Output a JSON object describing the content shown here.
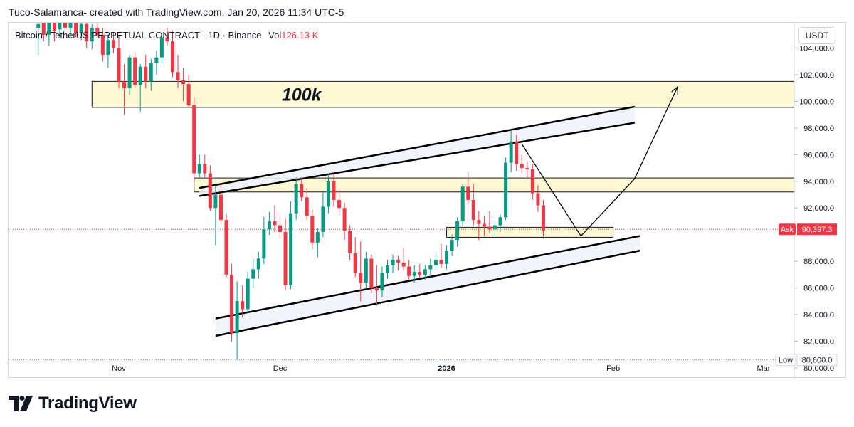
{
  "header": {
    "caption": "Tuco-Salamanca- created with TradingView.com, Jan 20, 2026 11:34 UTC-5",
    "symbol": "Bitcoin / TetherUS PERPETUAL CONTRACT · 1D · Binance",
    "vol_label": "Vol",
    "vol_value": "126.13 K",
    "currency": "USDT"
  },
  "brand": {
    "name": "TradingView"
  },
  "chart_data": {
    "type": "candlestick",
    "title": "Bitcoin / TetherUS PERPETUAL CONTRACT · 1D · Binance",
    "xlabel": "",
    "ylabel": "",
    "ylim": [
      79300,
      105900
    ],
    "y_ticks": [
      "104,000.0",
      "102,000.0",
      "100,000.0",
      "98,000.0",
      "96,000.0",
      "94,000.0",
      "92,000.0",
      "88,000.0",
      "86,000.0",
      "84,000.0",
      "82,000.0",
      "80,000.0"
    ],
    "x_ticks": [
      {
        "label": "Nov",
        "day": 0
      },
      {
        "label": "Dec",
        "day": 30
      },
      {
        "label": "2026",
        "day": 61
      },
      {
        "label": "Feb",
        "day": 92
      },
      {
        "label": "Mar",
        "day": 120
      }
    ],
    "ask": {
      "label": "Ask",
      "value": "90,397.3",
      "price": 90397
    },
    "low": {
      "label": "Low",
      "value": "80,600.0",
      "price": 80600
    },
    "annotations": [
      {
        "type": "zone",
        "label": "100k",
        "d1": -5,
        "d2": 126,
        "p_low": 99550,
        "p_high": 101500
      },
      {
        "type": "zone",
        "label": "",
        "d1": 14,
        "d2": 126,
        "p_low": 93200,
        "p_high": 94250
      },
      {
        "type": "zone",
        "label": "",
        "d1": 61,
        "d2": 92,
        "p_low": 89800,
        "p_high": 90550
      }
    ],
    "channel": {
      "upper": [
        {
          "day": 15,
          "price": 93500,
          "day2": 96,
          "price2": 99600
        },
        {
          "day": 15,
          "price": 92900,
          "day2": 96,
          "price2": 98400
        }
      ],
      "lower": [
        {
          "day": 18,
          "price": 83700,
          "day2": 97,
          "price2": 89900
        },
        {
          "day": 18,
          "price": 82400,
          "day2": 97,
          "price2": 88800
        }
      ]
    },
    "path": [
      {
        "day": 75,
        "price": 96800
      },
      {
        "day": 86,
        "price": 89900
      },
      {
        "day": 96,
        "price": 94200
      },
      {
        "day": 104,
        "price": 101100
      }
    ],
    "candles": [
      {
        "day": -15,
        "o": 105500,
        "h": 106200,
        "l": 103500,
        "c": 105800
      },
      {
        "day": -14,
        "o": 105900,
        "h": 106300,
        "l": 104500,
        "c": 105000
      },
      {
        "day": -13,
        "o": 105000,
        "h": 106500,
        "l": 104200,
        "c": 106000
      },
      {
        "day": -12,
        "o": 106000,
        "h": 106400,
        "l": 104500,
        "c": 105300
      },
      {
        "day": -11,
        "o": 105400,
        "h": 106200,
        "l": 104800,
        "c": 106100
      },
      {
        "day": -10,
        "o": 106000,
        "h": 106400,
        "l": 105000,
        "c": 105500
      },
      {
        "day": -9,
        "o": 105500,
        "h": 106200,
        "l": 104800,
        "c": 105900
      },
      {
        "day": -8,
        "o": 105900,
        "h": 106300,
        "l": 104800,
        "c": 105100
      },
      {
        "day": -7,
        "o": 105100,
        "h": 106000,
        "l": 104600,
        "c": 105800
      },
      {
        "day": -6,
        "o": 105800,
        "h": 106100,
        "l": 104000,
        "c": 104500
      },
      {
        "day": -5,
        "o": 104500,
        "h": 105800,
        "l": 103900,
        "c": 105500
      },
      {
        "day": -4,
        "o": 105500,
        "h": 106000,
        "l": 104800,
        "c": 105000
      },
      {
        "day": -3,
        "o": 105000,
        "h": 105500,
        "l": 103000,
        "c": 103500
      },
      {
        "day": -2,
        "o": 103500,
        "h": 105000,
        "l": 102500,
        "c": 104600
      },
      {
        "day": -1,
        "o": 104600,
        "h": 105200,
        "l": 103600,
        "c": 104000
      },
      {
        "day": 0,
        "o": 104000,
        "h": 105000,
        "l": 101000,
        "c": 101500
      },
      {
        "day": 1,
        "o": 101500,
        "h": 102800,
        "l": 99000,
        "c": 101000
      },
      {
        "day": 2,
        "o": 101000,
        "h": 103500,
        "l": 100500,
        "c": 103300
      },
      {
        "day": 3,
        "o": 103300,
        "h": 103700,
        "l": 101000,
        "c": 101200
      },
      {
        "day": 4,
        "o": 101200,
        "h": 102800,
        "l": 99200,
        "c": 102600
      },
      {
        "day": 5,
        "o": 102600,
        "h": 103500,
        "l": 101000,
        "c": 101500
      },
      {
        "day": 6,
        "o": 101500,
        "h": 103200,
        "l": 100800,
        "c": 102900
      },
      {
        "day": 7,
        "o": 102900,
        "h": 103800,
        "l": 102000,
        "c": 103300
      },
      {
        "day": 8,
        "o": 103300,
        "h": 105200,
        "l": 102800,
        "c": 104800
      },
      {
        "day": 9,
        "o": 104800,
        "h": 105500,
        "l": 104200,
        "c": 104500
      },
      {
        "day": 10,
        "o": 104500,
        "h": 105300,
        "l": 101800,
        "c": 102200
      },
      {
        "day": 11,
        "o": 102200,
        "h": 103500,
        "l": 101000,
        "c": 101600
      },
      {
        "day": 12,
        "o": 101600,
        "h": 102500,
        "l": 100000,
        "c": 101300
      },
      {
        "day": 13,
        "o": 101300,
        "h": 102000,
        "l": 99600,
        "c": 99700
      },
      {
        "day": 14,
        "o": 99700,
        "h": 100300,
        "l": 94000,
        "c": 94600
      },
      {
        "day": 15,
        "o": 94600,
        "h": 96000,
        "l": 94300,
        "c": 95300
      },
      {
        "day": 16,
        "o": 95300,
        "h": 96000,
        "l": 94300,
        "c": 94600
      },
      {
        "day": 17,
        "o": 94600,
        "h": 95200,
        "l": 91800,
        "c": 92000
      },
      {
        "day": 18,
        "o": 92000,
        "h": 93700,
        "l": 89200,
        "c": 93000
      },
      {
        "day": 19,
        "o": 93000,
        "h": 93800,
        "l": 90800,
        "c": 91100
      },
      {
        "day": 20,
        "o": 91100,
        "h": 91600,
        "l": 86800,
        "c": 87000
      },
      {
        "day": 21,
        "o": 87000,
        "h": 87800,
        "l": 82000,
        "c": 82600
      },
      {
        "day": 22,
        "o": 82600,
        "h": 86500,
        "l": 80600,
        "c": 85000
      },
      {
        "day": 23,
        "o": 85000,
        "h": 86200,
        "l": 83800,
        "c": 84400
      },
      {
        "day": 24,
        "o": 84400,
        "h": 87200,
        "l": 84100,
        "c": 86700
      },
      {
        "day": 25,
        "o": 86700,
        "h": 88200,
        "l": 86000,
        "c": 87400
      },
      {
        "day": 26,
        "o": 87400,
        "h": 88700,
        "l": 86700,
        "c": 88200
      },
      {
        "day": 27,
        "o": 88200,
        "h": 91300,
        "l": 87800,
        "c": 90400
      },
      {
        "day": 28,
        "o": 90400,
        "h": 91700,
        "l": 90000,
        "c": 91000
      },
      {
        "day": 29,
        "o": 91000,
        "h": 92200,
        "l": 90200,
        "c": 90700
      },
      {
        "day": 30,
        "o": 90700,
        "h": 91500,
        "l": 89700,
        "c": 90200
      },
      {
        "day": 31,
        "o": 90200,
        "h": 91200,
        "l": 85800,
        "c": 86200
      },
      {
        "day": 32,
        "o": 86200,
        "h": 92500,
        "l": 85900,
        "c": 91600
      },
      {
        "day": 33,
        "o": 91600,
        "h": 94300,
        "l": 91100,
        "c": 93800
      },
      {
        "day": 34,
        "o": 93800,
        "h": 94300,
        "l": 92500,
        "c": 92800
      },
      {
        "day": 35,
        "o": 92800,
        "h": 93500,
        "l": 91100,
        "c": 91400
      },
      {
        "day": 36,
        "o": 91400,
        "h": 91900,
        "l": 88900,
        "c": 89400
      },
      {
        "day": 37,
        "o": 89400,
        "h": 90500,
        "l": 88300,
        "c": 90200
      },
      {
        "day": 38,
        "o": 90200,
        "h": 93200,
        "l": 89800,
        "c": 92100
      },
      {
        "day": 39,
        "o": 92100,
        "h": 94600,
        "l": 91600,
        "c": 94000
      },
      {
        "day": 40,
        "o": 94000,
        "h": 94600,
        "l": 92100,
        "c": 92600
      },
      {
        "day": 41,
        "o": 92600,
        "h": 93400,
        "l": 91400,
        "c": 92000
      },
      {
        "day": 42,
        "o": 92000,
        "h": 92400,
        "l": 89600,
        "c": 90300
      },
      {
        "day": 43,
        "o": 90300,
        "h": 90700,
        "l": 88100,
        "c": 88600
      },
      {
        "day": 44,
        "o": 88600,
        "h": 89800,
        "l": 86800,
        "c": 87100
      },
      {
        "day": 45,
        "o": 87100,
        "h": 89500,
        "l": 85000,
        "c": 86400
      },
      {
        "day": 46,
        "o": 86400,
        "h": 88700,
        "l": 85900,
        "c": 88200
      },
      {
        "day": 47,
        "o": 88200,
        "h": 88500,
        "l": 85600,
        "c": 86000
      },
      {
        "day": 48,
        "o": 86000,
        "h": 87700,
        "l": 84700,
        "c": 85800
      },
      {
        "day": 49,
        "o": 85800,
        "h": 87600,
        "l": 85300,
        "c": 87100
      },
      {
        "day": 50,
        "o": 87100,
        "h": 88100,
        "l": 86700,
        "c": 87700
      },
      {
        "day": 51,
        "o": 87700,
        "h": 88500,
        "l": 87100,
        "c": 88100
      },
      {
        "day": 52,
        "o": 88100,
        "h": 88400,
        "l": 87300,
        "c": 87900
      },
      {
        "day": 53,
        "o": 87900,
        "h": 89000,
        "l": 87300,
        "c": 87600
      },
      {
        "day": 54,
        "o": 87600,
        "h": 88100,
        "l": 86600,
        "c": 86900
      },
      {
        "day": 55,
        "o": 86900,
        "h": 87700,
        "l": 86400,
        "c": 87200
      },
      {
        "day": 56,
        "o": 87200,
        "h": 87800,
        "l": 86700,
        "c": 87000
      },
      {
        "day": 57,
        "o": 87000,
        "h": 87700,
        "l": 86600,
        "c": 87400
      },
      {
        "day": 58,
        "o": 87400,
        "h": 88200,
        "l": 86800,
        "c": 87700
      },
      {
        "day": 59,
        "o": 87700,
        "h": 88700,
        "l": 87300,
        "c": 88100
      },
      {
        "day": 60,
        "o": 88100,
        "h": 89300,
        "l": 87500,
        "c": 87800
      },
      {
        "day": 61,
        "o": 87800,
        "h": 89200,
        "l": 87400,
        "c": 88800
      },
      {
        "day": 62,
        "o": 88800,
        "h": 90000,
        "l": 88400,
        "c": 89600
      },
      {
        "day": 63,
        "o": 89600,
        "h": 91300,
        "l": 89100,
        "c": 91000
      },
      {
        "day": 64,
        "o": 91000,
        "h": 93800,
        "l": 90600,
        "c": 93600
      },
      {
        "day": 65,
        "o": 93600,
        "h": 94700,
        "l": 92300,
        "c": 92600
      },
      {
        "day": 66,
        "o": 92600,
        "h": 93800,
        "l": 90700,
        "c": 91100
      },
      {
        "day": 67,
        "o": 91100,
        "h": 91800,
        "l": 89600,
        "c": 90800
      },
      {
        "day": 68,
        "o": 90800,
        "h": 91400,
        "l": 89900,
        "c": 90600
      },
      {
        "day": 69,
        "o": 90600,
        "h": 91800,
        "l": 90100,
        "c": 90400
      },
      {
        "day": 70,
        "o": 90400,
        "h": 91100,
        "l": 89900,
        "c": 90700
      },
      {
        "day": 71,
        "o": 90700,
        "h": 91500,
        "l": 90200,
        "c": 91300
      },
      {
        "day": 72,
        "o": 91300,
        "h": 95800,
        "l": 91100,
        "c": 95400
      },
      {
        "day": 73,
        "o": 95400,
        "h": 97800,
        "l": 94700,
        "c": 97000
      },
      {
        "day": 74,
        "o": 97000,
        "h": 97500,
        "l": 94800,
        "c": 95300
      },
      {
        "day": 75,
        "o": 95300,
        "h": 96000,
        "l": 94600,
        "c": 95000
      },
      {
        "day": 76,
        "o": 95000,
        "h": 95500,
        "l": 94300,
        "c": 94900
      },
      {
        "day": 77,
        "o": 94900,
        "h": 95300,
        "l": 92600,
        "c": 93100
      },
      {
        "day": 78,
        "o": 93100,
        "h": 93700,
        "l": 91700,
        "c": 92200
      },
      {
        "day": 79,
        "o": 92200,
        "h": 92600,
        "l": 89700,
        "c": 90300
      }
    ]
  }
}
